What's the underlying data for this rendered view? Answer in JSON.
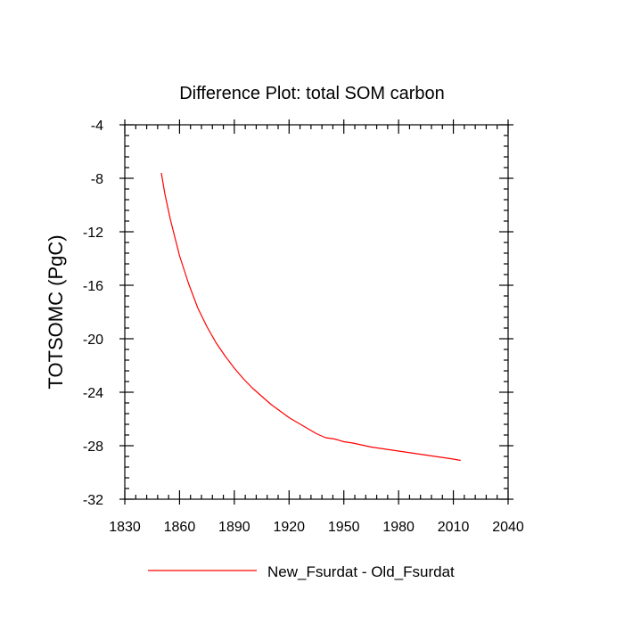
{
  "chart_data": {
    "type": "line",
    "title": "Difference Plot: total SOM carbon",
    "xlabel": "",
    "ylabel": "TOTSOMC  (PgC)",
    "xlim": [
      1830,
      2040
    ],
    "ylim": [
      -32,
      -4
    ],
    "xticks": [
      1830,
      1860,
      1890,
      1920,
      1950,
      1980,
      2010,
      2040
    ],
    "yticks": [
      -32,
      -28,
      -24,
      -20,
      -16,
      -12,
      -8,
      -4
    ],
    "grid": false,
    "legend_position": "bottom-center",
    "series": [
      {
        "name": "New_Fsurdat - Old_Fsurdat",
        "color": "#ff0000",
        "x": [
          1850,
          1852,
          1855,
          1860,
          1865,
          1870,
          1875,
          1880,
          1885,
          1890,
          1895,
          1900,
          1905,
          1910,
          1915,
          1920,
          1925,
          1930,
          1935,
          1940,
          1945,
          1950,
          1955,
          1960,
          1965,
          1970,
          1975,
          1980,
          1985,
          1990,
          1995,
          2000,
          2005,
          2010,
          2014
        ],
        "y": [
          -7.6,
          -9.2,
          -11.1,
          -13.8,
          -15.9,
          -17.7,
          -19.1,
          -20.3,
          -21.3,
          -22.2,
          -23.0,
          -23.7,
          -24.3,
          -24.9,
          -25.4,
          -25.9,
          -26.3,
          -26.7,
          -27.1,
          -27.4,
          -27.5,
          -27.7,
          -27.8,
          -27.95,
          -28.1,
          -28.2,
          -28.3,
          -28.4,
          -28.5,
          -28.6,
          -28.7,
          -28.8,
          -28.9,
          -29.0,
          -29.1
        ]
      }
    ]
  }
}
